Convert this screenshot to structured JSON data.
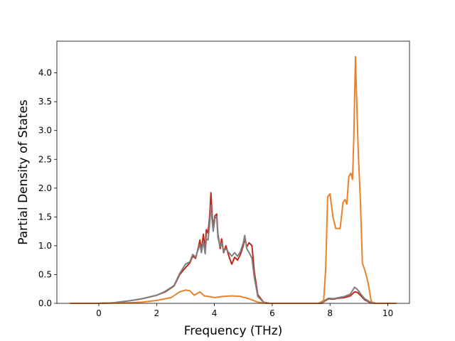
{
  "chart_data": {
    "type": "line",
    "title": "",
    "xlabel": "Frequency (THz)",
    "ylabel": "Partial Density of States",
    "xlim": [
      -1.45,
      10.75
    ],
    "ylim": [
      0.0,
      4.55
    ],
    "xticks": [
      0,
      2,
      4,
      6,
      8,
      10
    ],
    "yticks": [
      0.0,
      0.5,
      1.0,
      1.5,
      2.0,
      2.5,
      3.0,
      3.5,
      4.0
    ],
    "xtick_labels": [
      "0",
      "2",
      "4",
      "6",
      "8",
      "10"
    ],
    "ytick_labels": [
      "0.0",
      "0.5",
      "1.0",
      "1.5",
      "2.0",
      "2.5",
      "3.0",
      "3.5",
      "4.0"
    ],
    "grid": false,
    "legend": "none",
    "series": [
      {
        "color": "#c0281b",
        "points": [
          [
            -1.0,
            0
          ],
          [
            0,
            0
          ],
          [
            0.5,
            0.01
          ],
          [
            1.0,
            0.04
          ],
          [
            1.5,
            0.08
          ],
          [
            2.0,
            0.14
          ],
          [
            2.3,
            0.2
          ],
          [
            2.6,
            0.3
          ],
          [
            2.8,
            0.5
          ],
          [
            3.0,
            0.62
          ],
          [
            3.15,
            0.7
          ],
          [
            3.25,
            0.82
          ],
          [
            3.35,
            0.78
          ],
          [
            3.45,
            0.98
          ],
          [
            3.5,
            1.1
          ],
          [
            3.55,
            0.92
          ],
          [
            3.62,
            1.2
          ],
          [
            3.68,
            0.92
          ],
          [
            3.72,
            1.28
          ],
          [
            3.78,
            1.22
          ],
          [
            3.83,
            1.48
          ],
          [
            3.88,
            1.92
          ],
          [
            3.92,
            1.55
          ],
          [
            3.96,
            1.32
          ],
          [
            4.02,
            1.52
          ],
          [
            4.08,
            1.55
          ],
          [
            4.12,
            1.2
          ],
          [
            4.2,
            0.95
          ],
          [
            4.25,
            1.12
          ],
          [
            4.32,
            0.88
          ],
          [
            4.4,
            1.0
          ],
          [
            4.5,
            0.82
          ],
          [
            4.6,
            0.68
          ],
          [
            4.7,
            0.8
          ],
          [
            4.8,
            0.75
          ],
          [
            4.9,
            0.85
          ],
          [
            5.0,
            1.0
          ],
          [
            5.05,
            1.12
          ],
          [
            5.12,
            0.98
          ],
          [
            5.2,
            1.05
          ],
          [
            5.3,
            1.0
          ],
          [
            5.38,
            0.55
          ],
          [
            5.5,
            0.15
          ],
          [
            5.7,
            0.02
          ],
          [
            5.9,
            0
          ],
          [
            7.7,
            0
          ],
          [
            7.82,
            0.04
          ],
          [
            7.95,
            0.08
          ],
          [
            8.1,
            0.07
          ],
          [
            8.3,
            0.09
          ],
          [
            8.5,
            0.1
          ],
          [
            8.7,
            0.13
          ],
          [
            8.85,
            0.2
          ],
          [
            8.95,
            0.19
          ],
          [
            9.05,
            0.14
          ],
          [
            9.2,
            0.06
          ],
          [
            9.4,
            0.01
          ],
          [
            9.6,
            0
          ],
          [
            10.3,
            0
          ]
        ]
      },
      {
        "color": "#7f7f7f",
        "points": [
          [
            -1.0,
            0
          ],
          [
            0,
            0
          ],
          [
            0.5,
            0.01
          ],
          [
            1.0,
            0.04
          ],
          [
            1.5,
            0.08
          ],
          [
            2.0,
            0.14
          ],
          [
            2.3,
            0.21
          ],
          [
            2.6,
            0.31
          ],
          [
            2.8,
            0.52
          ],
          [
            3.0,
            0.68
          ],
          [
            3.15,
            0.72
          ],
          [
            3.25,
            0.85
          ],
          [
            3.35,
            0.8
          ],
          [
            3.45,
            0.95
          ],
          [
            3.5,
            1.02
          ],
          [
            3.55,
            0.88
          ],
          [
            3.62,
            1.08
          ],
          [
            3.68,
            0.86
          ],
          [
            3.72,
            1.12
          ],
          [
            3.78,
            1.1
          ],
          [
            3.83,
            1.35
          ],
          [
            3.88,
            1.7
          ],
          [
            3.92,
            1.45
          ],
          [
            3.96,
            1.25
          ],
          [
            4.02,
            1.48
          ],
          [
            4.08,
            1.5
          ],
          [
            4.12,
            1.15
          ],
          [
            4.2,
            0.98
          ],
          [
            4.25,
            1.05
          ],
          [
            4.32,
            0.9
          ],
          [
            4.4,
            0.95
          ],
          [
            4.5,
            0.88
          ],
          [
            4.6,
            0.82
          ],
          [
            4.7,
            0.88
          ],
          [
            4.8,
            0.82
          ],
          [
            4.9,
            0.9
          ],
          [
            5.0,
            1.05
          ],
          [
            5.05,
            1.18
          ],
          [
            5.12,
            0.95
          ],
          [
            5.2,
            0.88
          ],
          [
            5.3,
            0.78
          ],
          [
            5.38,
            0.45
          ],
          [
            5.5,
            0.12
          ],
          [
            5.7,
            0.02
          ],
          [
            5.9,
            0
          ],
          [
            7.7,
            0
          ],
          [
            7.82,
            0.05
          ],
          [
            7.95,
            0.09
          ],
          [
            8.1,
            0.08
          ],
          [
            8.3,
            0.1
          ],
          [
            8.5,
            0.12
          ],
          [
            8.7,
            0.16
          ],
          [
            8.85,
            0.28
          ],
          [
            8.95,
            0.24
          ],
          [
            9.05,
            0.17
          ],
          [
            9.2,
            0.08
          ],
          [
            9.4,
            0.02
          ],
          [
            9.6,
            0
          ],
          [
            10.3,
            0
          ]
        ]
      },
      {
        "color": "#e8822a",
        "points": [
          [
            -1.0,
            0
          ],
          [
            0,
            0
          ],
          [
            1.0,
            0.01
          ],
          [
            1.5,
            0.02
          ],
          [
            2.0,
            0.05
          ],
          [
            2.5,
            0.1
          ],
          [
            2.8,
            0.2
          ],
          [
            3.0,
            0.23
          ],
          [
            3.15,
            0.22
          ],
          [
            3.3,
            0.14
          ],
          [
            3.5,
            0.2
          ],
          [
            3.65,
            0.13
          ],
          [
            3.8,
            0.12
          ],
          [
            4.0,
            0.1
          ],
          [
            4.3,
            0.12
          ],
          [
            4.6,
            0.13
          ],
          [
            4.9,
            0.12
          ],
          [
            5.2,
            0.08
          ],
          [
            5.5,
            0.02
          ],
          [
            5.8,
            0
          ],
          [
            7.6,
            0
          ],
          [
            7.78,
            0.05
          ],
          [
            7.85,
            0.6
          ],
          [
            7.92,
            1.85
          ],
          [
            8.0,
            1.9
          ],
          [
            8.1,
            1.5
          ],
          [
            8.2,
            1.3
          ],
          [
            8.35,
            1.3
          ],
          [
            8.45,
            1.75
          ],
          [
            8.52,
            1.8
          ],
          [
            8.58,
            1.72
          ],
          [
            8.65,
            2.2
          ],
          [
            8.72,
            2.26
          ],
          [
            8.78,
            2.15
          ],
          [
            8.82,
            2.8
          ],
          [
            8.88,
            4.28
          ],
          [
            8.93,
            3.4
          ],
          [
            8.98,
            2.6
          ],
          [
            9.05,
            1.8
          ],
          [
            9.12,
            0.7
          ],
          [
            9.22,
            0.55
          ],
          [
            9.32,
            0.35
          ],
          [
            9.42,
            0.05
          ],
          [
            9.5,
            0
          ],
          [
            10.3,
            0
          ]
        ]
      }
    ]
  }
}
